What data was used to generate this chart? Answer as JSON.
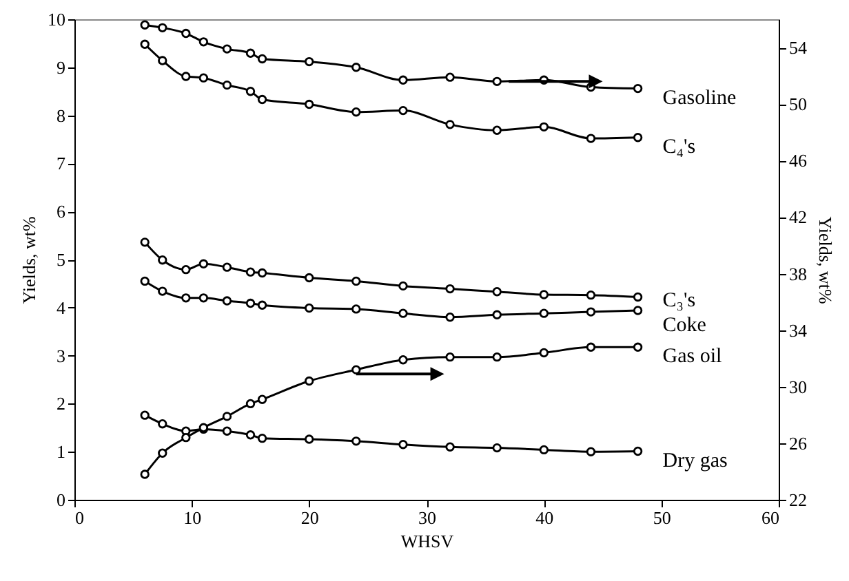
{
  "chart_data": {
    "type": "line",
    "xlabel": "WHSV",
    "ylabel": "Yields, wt%",
    "y2label": "Yields, wt%",
    "x": [
      6,
      7.5,
      9.5,
      11,
      13,
      15,
      16,
      20,
      24,
      28,
      32,
      36,
      40,
      44,
      48
    ],
    "series": [
      {
        "name": "Gasoline",
        "color": "#000000",
        "axis": "y2",
        "values": [
          55.6,
          55.4,
          55.0,
          54.4,
          53.9,
          53.6,
          53.2,
          53.0,
          52.6,
          51.7,
          51.9,
          51.6,
          51.7,
          51.2,
          51.1
        ]
      },
      {
        "name": "C₄'s",
        "color": "#000000",
        "values": [
          9.48,
          9.14,
          8.81,
          8.78,
          8.63,
          8.5,
          8.33,
          8.23,
          8.07,
          8.1,
          7.81,
          7.69,
          7.76,
          7.52,
          7.54
        ]
      },
      {
        "name": "C₃'s",
        "color": "#000000",
        "values": [
          5.36,
          4.99,
          4.79,
          4.91,
          4.84,
          4.74,
          4.72,
          4.62,
          4.55,
          4.45,
          4.39,
          4.33,
          4.27,
          4.26,
          4.22
        ]
      },
      {
        "name": "Coke",
        "color": "#000000",
        "values": [
          4.55,
          4.34,
          4.2,
          4.2,
          4.14,
          4.09,
          4.05,
          3.99,
          3.97,
          3.88,
          3.8,
          3.85,
          3.88,
          3.91,
          3.94
        ]
      },
      {
        "name": "Gas oil",
        "color": "#000000",
        "axis": "y2",
        "values": [
          23.8,
          25.3,
          26.4,
          27.1,
          27.9,
          28.8,
          29.1,
          30.4,
          31.2,
          31.9,
          32.1,
          32.1,
          32.4,
          32.8,
          32.8
        ]
      },
      {
        "name": "Dry gas",
        "color": "#000000",
        "values": [
          1.76,
          1.58,
          1.43,
          1.47,
          1.43,
          1.35,
          1.28,
          1.26,
          1.22,
          1.15,
          1.1,
          1.08,
          1.04,
          1.0,
          1.01
        ]
      }
    ],
    "xlim": [
      0,
      60
    ],
    "xticks": [
      0,
      10,
      20,
      30,
      40,
      50,
      60
    ],
    "ylim": [
      0,
      10
    ],
    "yticks": [
      0,
      1,
      2,
      3,
      4,
      5,
      6,
      7,
      8,
      9,
      10
    ],
    "y2lim": [
      22,
      56
    ],
    "y2ticks": [
      22,
      26,
      30,
      34,
      38,
      42,
      46,
      50,
      54
    ],
    "grid": false,
    "legend": false,
    "marker": "circle",
    "line_style": "solid"
  }
}
